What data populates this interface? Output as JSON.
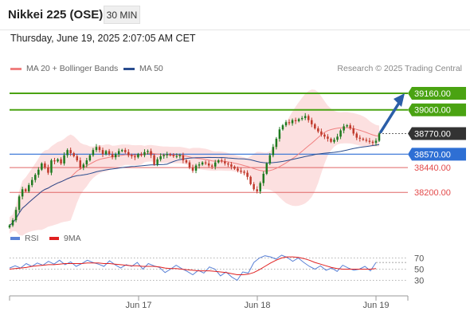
{
  "header": {
    "title": "Nikkei 225 (OSE)",
    "timeframe": "30 MIN",
    "datetime": "Thursday, June 19, 2025 2:07:05 AM CET"
  },
  "legend": {
    "ma20": {
      "label": "MA 20 + Bollinger Bands",
      "color": "#f08080"
    },
    "ma50": {
      "label": "MA 50",
      "color": "#2a4d8f"
    },
    "credit": "Research © 2025 Trading Central"
  },
  "indicator_legend": {
    "rsi": {
      "label": "RSI",
      "color": "#5b82d6"
    },
    "ma9": {
      "label": "9MA",
      "color": "#e02020"
    }
  },
  "colors": {
    "up": "#1f7a1f",
    "down": "#c0392b",
    "accent_green": "#4aa312",
    "pivot_blue": "#2e6fd4",
    "support_red": "#e06666",
    "current_dark": "#333333",
    "arrow": "#2b5ea8"
  },
  "chart_data": [
    {
      "type": "candlestick",
      "title": "Nikkei 225 (OSE)",
      "xlabel": "",
      "ylabel": "",
      "x_ticks": [
        "Jun 17",
        "Jun 18",
        "Jun 19"
      ],
      "ylim": [
        37900,
        39330
      ],
      "close_series": [
        37880,
        37930,
        38030,
        38160,
        38230,
        38210,
        38270,
        38320,
        38370,
        38420,
        38480,
        38440,
        38390,
        38510,
        38500,
        38520,
        38480,
        38560,
        38610,
        38580,
        38550,
        38510,
        38440,
        38470,
        38510,
        38560,
        38610,
        38640,
        38610,
        38570,
        38600,
        38570,
        38540,
        38570,
        38600,
        38610,
        38590,
        38560,
        38550,
        38540,
        38570,
        38560,
        38590,
        38600,
        38560,
        38470,
        38520,
        38550,
        38560,
        38570,
        38560,
        38550,
        38550,
        38560,
        38510,
        38490,
        38440,
        38410,
        38460,
        38470,
        38490,
        38480,
        38460,
        38450,
        38490,
        38510,
        38500,
        38480,
        38470,
        38450,
        38430,
        38410,
        38400,
        38390,
        38350,
        38280,
        38230,
        38210,
        38290,
        38380,
        38480,
        38560,
        38640,
        38720,
        38810,
        38850,
        38880,
        38870,
        38900,
        38890,
        38910,
        38920,
        38940,
        38900,
        38860,
        38820,
        38790,
        38760,
        38740,
        38720,
        38690,
        38710,
        38740,
        38800,
        38840,
        38850,
        38820,
        38770,
        38730,
        38720,
        38710,
        38700,
        38690,
        38680,
        38700,
        38770
      ],
      "levels": [
        {
          "value": 39160,
          "label": "39160.00",
          "kind": "resistance"
        },
        {
          "value": 39000,
          "label": "39000.00",
          "kind": "resistance"
        },
        {
          "value": 38770,
          "label": "38770.00",
          "kind": "current"
        },
        {
          "value": 38570,
          "label": "38570.00",
          "kind": "pivot"
        },
        {
          "value": 38440,
          "label": "38440.00",
          "kind": "support"
        },
        {
          "value": 38200,
          "label": "38200.00",
          "kind": "support"
        }
      ],
      "series": [
        {
          "name": "MA 20 + Bollinger Bands"
        },
        {
          "name": "MA 50"
        }
      ],
      "projection": {
        "from": 38770,
        "to": 39160
      },
      "grid": false
    },
    {
      "type": "line",
      "xlabel": "",
      "ylabel": "",
      "ylim": [
        15,
        85
      ],
      "y_ticks": [
        "70",
        "50",
        "30"
      ],
      "series": [
        {
          "name": "RSI",
          "values": [
            52,
            56,
            52,
            60,
            55,
            61,
            57,
            64,
            59,
            66,
            58,
            63,
            55,
            60,
            66,
            62,
            59,
            55,
            65,
            58,
            52,
            58,
            55,
            62,
            50,
            60,
            56,
            53,
            44,
            50,
            57,
            51,
            46,
            40,
            48,
            43,
            54,
            50,
            38,
            45,
            36,
            30,
            45,
            43,
            62,
            70,
            74,
            72,
            68,
            75,
            71,
            64,
            70,
            62,
            55,
            50,
            56,
            48,
            52,
            46,
            57,
            52,
            48,
            50,
            55,
            47,
            62
          ]
        },
        {
          "name": "9MA",
          "values": [
            50,
            51,
            52,
            53,
            55,
            56,
            57,
            58,
            58,
            59,
            60,
            60,
            60,
            60,
            61,
            61,
            61,
            60,
            60,
            59,
            58,
            57,
            56,
            56,
            55,
            55,
            55,
            54,
            52,
            51,
            51,
            50,
            49,
            48,
            47,
            47,
            47,
            46,
            45,
            44,
            42,
            40,
            40,
            41,
            44,
            49,
            55,
            61,
            66,
            70,
            72,
            72,
            71,
            69,
            66,
            62,
            59,
            56,
            53,
            51,
            50,
            50,
            50,
            50,
            50,
            50,
            51
          ]
        }
      ]
    }
  ]
}
